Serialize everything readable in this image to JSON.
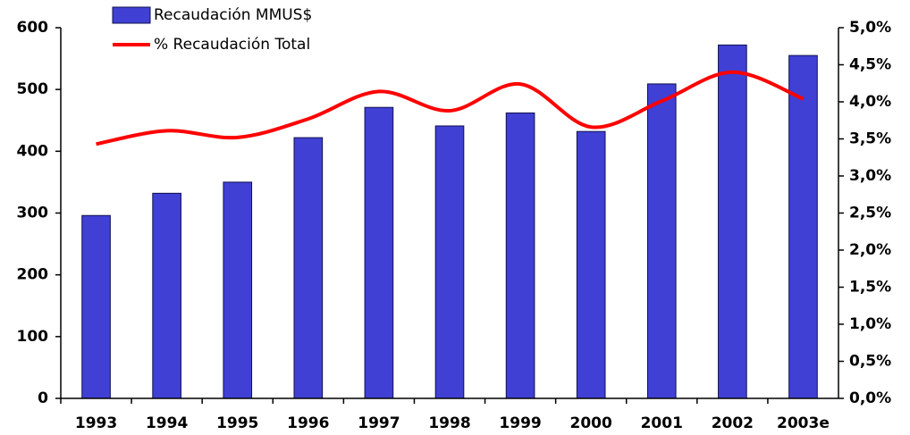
{
  "chart_data": {
    "type": "bar_line",
    "categories": [
      "1993",
      "1994",
      "1995",
      "1996",
      "1997",
      "1998",
      "1999",
      "2000",
      "2001",
      "2002",
      "2003e"
    ],
    "series": [
      {
        "name": "Recaudación MMUS$",
        "type": "bar",
        "color": "#4040d4",
        "values": [
          296,
          332,
          350,
          422,
          471,
          441,
          462,
          432,
          509,
          572,
          555
        ]
      },
      {
        "name": "% Recaudación Total",
        "type": "line",
        "axis": "y2",
        "color": "#ff0000",
        "values": [
          3.43,
          3.61,
          3.52,
          3.77,
          4.14,
          3.88,
          4.24,
          3.66,
          4.01,
          4.4,
          4.04
        ]
      }
    ],
    "ylim": [
      0,
      600
    ],
    "yticks": [
      0,
      100,
      200,
      300,
      400,
      500,
      600
    ],
    "y2lim": [
      0,
      5
    ],
    "y2ticks": [
      {
        "value": 0,
        "label": "0,0%"
      },
      {
        "value": 0.5,
        "label": "0,5%"
      },
      {
        "value": 1,
        "label": "1,0%"
      },
      {
        "value": 1.5,
        "label": "1,5%"
      },
      {
        "value": 2,
        "label": "2,0%"
      },
      {
        "value": 2.5,
        "label": "2,5%"
      },
      {
        "value": 3,
        "label": "3,0%"
      },
      {
        "value": 3.5,
        "label": "3,5%"
      },
      {
        "value": 4,
        "label": "4,0%"
      },
      {
        "value": 4.5,
        "label": "4,5%"
      },
      {
        "value": 5,
        "label": "5,0%"
      }
    ],
    "grid": false
  }
}
